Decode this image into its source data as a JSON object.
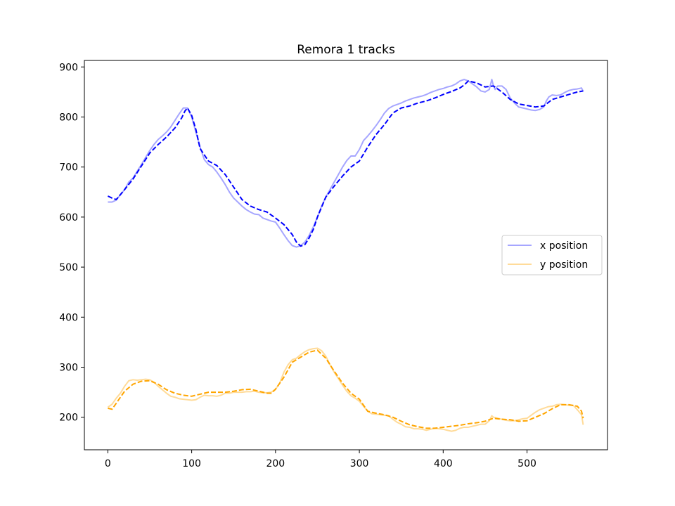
{
  "chart_data": {
    "type": "line",
    "title": "Remora 1 tracks",
    "xlabel": "",
    "ylabel": "",
    "xlim": [
      -28,
      596
    ],
    "ylim": [
      135,
      913
    ],
    "xticks": [
      0,
      100,
      200,
      300,
      400,
      500
    ],
    "yticks": [
      200,
      300,
      400,
      500,
      600,
      700,
      800,
      900
    ],
    "grid": false,
    "legend": {
      "placement": "center-right",
      "entries": [
        "x position",
        "y position"
      ]
    },
    "series": [
      {
        "name": "x position",
        "style": "solid",
        "color": "#0000ff",
        "opacity": 0.35,
        "x": [
          0,
          5,
          10,
          20,
          25,
          30,
          40,
          50,
          55,
          60,
          65,
          70,
          75,
          80,
          85,
          90,
          95,
          100,
          105,
          110,
          115,
          120,
          125,
          130,
          135,
          140,
          145,
          150,
          155,
          160,
          165,
          170,
          175,
          180,
          185,
          190,
          195,
          200,
          205,
          210,
          215,
          220,
          225,
          230,
          235,
          240,
          245,
          250,
          255,
          260,
          265,
          270,
          275,
          280,
          285,
          290,
          295,
          300,
          305,
          310,
          315,
          320,
          325,
          330,
          335,
          340,
          345,
          350,
          355,
          360,
          365,
          370,
          375,
          380,
          385,
          390,
          395,
          400,
          405,
          410,
          415,
          420,
          425,
          430,
          435,
          440,
          445,
          450,
          455,
          458,
          460,
          462,
          465,
          470,
          475,
          480,
          485,
          490,
          495,
          500,
          505,
          510,
          515,
          520,
          523,
          526,
          530,
          535,
          540,
          545,
          550,
          555,
          560,
          565,
          567
        ],
        "values": [
          630,
          630,
          634,
          655,
          670,
          678,
          705,
          733,
          745,
          755,
          762,
          770,
          780,
          793,
          806,
          818,
          818,
          800,
          770,
          740,
          715,
          705,
          700,
          690,
          678,
          665,
          650,
          638,
          630,
          622,
          615,
          610,
          606,
          605,
          598,
          595,
          592,
          590,
          578,
          565,
          553,
          543,
          540,
          543,
          550,
          563,
          580,
          600,
          622,
          640,
          655,
          670,
          685,
          700,
          713,
          722,
          722,
          735,
          753,
          762,
          772,
          783,
          795,
          808,
          817,
          822,
          825,
          828,
          832,
          835,
          838,
          840,
          842,
          845,
          849,
          852,
          855,
          857,
          860,
          862,
          866,
          872,
          875,
          872,
          866,
          860,
          852,
          850,
          855,
          875,
          862,
          855,
          862,
          862,
          855,
          838,
          828,
          820,
          818,
          816,
          814,
          813,
          815,
          820,
          832,
          840,
          844,
          843,
          844,
          849,
          853,
          855,
          856,
          858,
          851
        ]
      },
      {
        "name": "",
        "style": "dashed",
        "color": "#0000ff",
        "opacity": 1,
        "x": [
          0,
          5,
          10,
          15,
          20,
          30,
          40,
          50,
          60,
          70,
          80,
          88,
          92,
          95,
          100,
          105,
          110,
          120,
          130,
          140,
          150,
          160,
          170,
          180,
          190,
          200,
          210,
          220,
          225,
          230,
          235,
          240,
          245,
          250,
          260,
          270,
          280,
          290,
          300,
          310,
          320,
          330,
          340,
          350,
          360,
          370,
          380,
          390,
          400,
          410,
          420,
          425,
          430,
          440,
          450,
          460,
          470,
          480,
          490,
          500,
          510,
          520,
          530,
          540,
          550,
          560,
          567
        ],
        "values": [
          642,
          638,
          635,
          645,
          655,
          676,
          702,
          728,
          745,
          760,
          778,
          798,
          812,
          818,
          803,
          775,
          737,
          712,
          703,
          685,
          660,
          635,
          622,
          615,
          610,
          598,
          585,
          565,
          550,
          542,
          545,
          558,
          575,
          600,
          640,
          662,
          682,
          700,
          712,
          740,
          765,
          785,
          808,
          818,
          822,
          828,
          832,
          838,
          845,
          851,
          858,
          864,
          872,
          868,
          860,
          862,
          850,
          835,
          826,
          823,
          820,
          822,
          835,
          840,
          845,
          850,
          852
        ]
      },
      {
        "name": "y position",
        "style": "solid",
        "color": "#ffa500",
        "opacity": 0.4,
        "x": [
          0,
          5,
          10,
          15,
          20,
          25,
          30,
          35,
          40,
          45,
          50,
          55,
          60,
          65,
          70,
          75,
          80,
          85,
          90,
          95,
          100,
          105,
          110,
          115,
          120,
          125,
          130,
          135,
          140,
          145,
          150,
          155,
          160,
          165,
          170,
          175,
          180,
          185,
          190,
          195,
          200,
          205,
          210,
          215,
          220,
          225,
          230,
          235,
          240,
          245,
          250,
          255,
          260,
          265,
          270,
          275,
          280,
          285,
          290,
          295,
          300,
          305,
          310,
          315,
          320,
          325,
          330,
          335,
          340,
          345,
          350,
          355,
          360,
          365,
          370,
          375,
          380,
          385,
          390,
          395,
          400,
          405,
          410,
          415,
          420,
          425,
          430,
          435,
          440,
          445,
          450,
          455,
          458,
          460,
          465,
          470,
          475,
          480,
          485,
          490,
          495,
          500,
          505,
          510,
          515,
          520,
          525,
          530,
          535,
          540,
          545,
          550,
          555,
          560,
          565,
          567
        ],
        "values": [
          220,
          226,
          238,
          248,
          262,
          273,
          275,
          274,
          275,
          276,
          275,
          270,
          262,
          255,
          248,
          242,
          240,
          237,
          236,
          235,
          234,
          235,
          240,
          244,
          243,
          243,
          242,
          244,
          248,
          248,
          250,
          250,
          250,
          251,
          251,
          252,
          250,
          249,
          249,
          250,
          256,
          268,
          290,
          305,
          315,
          318,
          325,
          331,
          335,
          337,
          338,
          333,
          322,
          305,
          290,
          277,
          264,
          252,
          243,
          238,
          232,
          222,
          212,
          207,
          206,
          205,
          204,
          203,
          196,
          190,
          186,
          181,
          180,
          177,
          177,
          176,
          174,
          176,
          178,
          177,
          176,
          174,
          172,
          174,
          178,
          180,
          180,
          182,
          184,
          186,
          186,
          193,
          203,
          200,
          198,
          196,
          194,
          193,
          193,
          195,
          197,
          198,
          204,
          210,
          215,
          218,
          221,
          222,
          225,
          226,
          225,
          224,
          224,
          215,
          205,
          185
        ]
      },
      {
        "name": "",
        "style": "dashed",
        "color": "#ffa500",
        "opacity": 1,
        "x": [
          0,
          5,
          10,
          20,
          30,
          40,
          50,
          60,
          70,
          80,
          90,
          100,
          110,
          120,
          130,
          140,
          150,
          160,
          170,
          180,
          190,
          195,
          200,
          210,
          220,
          230,
          240,
          250,
          260,
          270,
          280,
          290,
          300,
          310,
          320,
          330,
          340,
          350,
          360,
          370,
          380,
          390,
          400,
          410,
          420,
          430,
          440,
          450,
          460,
          470,
          480,
          490,
          500,
          510,
          520,
          530,
          540,
          550,
          560,
          565,
          567
        ],
        "values": [
          218,
          216,
          228,
          252,
          266,
          272,
          273,
          266,
          255,
          248,
          244,
          242,
          246,
          250,
          250,
          250,
          252,
          255,
          256,
          252,
          248,
          248,
          256,
          280,
          310,
          320,
          330,
          334,
          318,
          292,
          268,
          248,
          236,
          212,
          208,
          205,
          200,
          192,
          185,
          181,
          178,
          178,
          180,
          182,
          184,
          187,
          189,
          192,
          198,
          196,
          195,
          192,
          193,
          200,
          207,
          217,
          225,
          225,
          222,
          212,
          198
        ]
      }
    ]
  }
}
